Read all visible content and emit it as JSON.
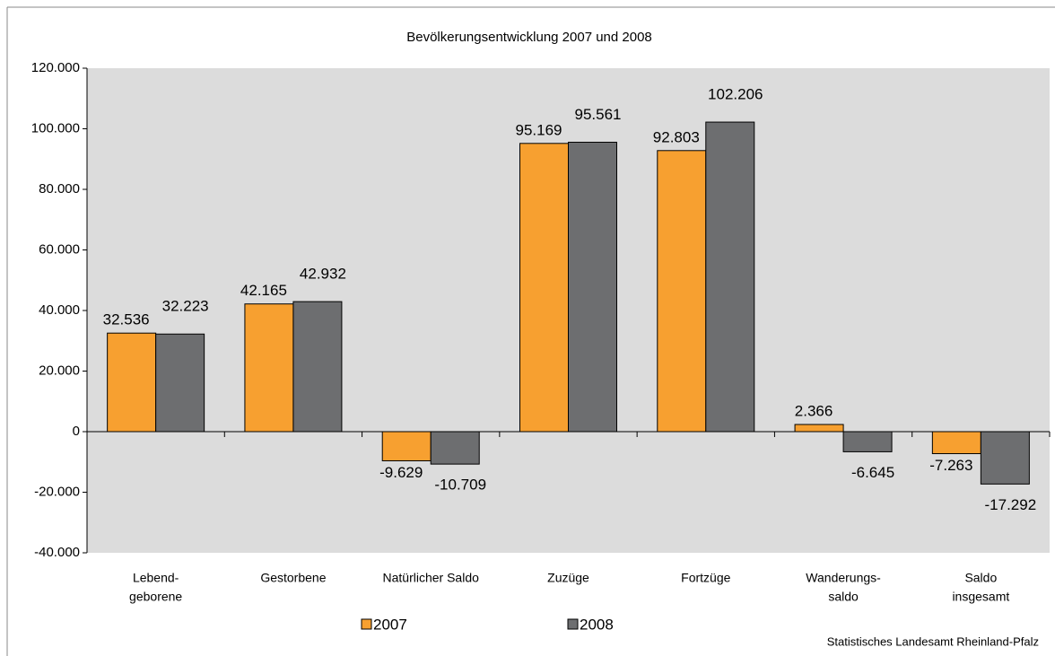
{
  "chart_data": {
    "type": "bar",
    "title": "Bevölkerungsentwicklung 2007 und 2008",
    "categories": [
      [
        "Lebend-",
        "geborene"
      ],
      [
        "Gestorbene"
      ],
      [
        "Natürlicher Saldo"
      ],
      [
        "Zuzüge"
      ],
      [
        "Fortzüge"
      ],
      [
        "Wanderungs-",
        "saldo"
      ],
      [
        "Saldo",
        "insgesamt"
      ]
    ],
    "series": [
      {
        "name": "2007",
        "color": "#f7a030",
        "values": [
          32536,
          42165,
          -9629,
          95169,
          92803,
          2366,
          -7263
        ],
        "value_labels": [
          "32.536",
          "42.165",
          "-9.629",
          "95.169",
          "92.803",
          "2.366",
          "-7.263"
        ]
      },
      {
        "name": "2008",
        "color": "#6d6e70",
        "values": [
          32223,
          42932,
          -10709,
          95561,
          102206,
          -6645,
          -17292
        ],
        "value_labels": [
          "32.223",
          "42.932",
          "-10.709",
          "95.561",
          "102.206",
          "-6.645",
          "-17.292"
        ]
      }
    ],
    "ylim": [
      -40000,
      120000
    ],
    "yticks": [
      {
        "value": -40000,
        "label": "-40.000"
      },
      {
        "value": -20000,
        "label": "-20.000"
      },
      0,
      {
        "value": 20000,
        "label": "20.000"
      },
      {
        "value": 40000,
        "label": "40.000"
      },
      {
        "value": 60000,
        "label": "60.000"
      },
      {
        "value": 80000,
        "label": "80.000"
      },
      {
        "value": 100000,
        "label": "100.000"
      },
      {
        "value": 120000,
        "label": "120.000"
      }
    ],
    "legend": "bottom",
    "source": "Statistisches Landesamt Rheinland-Pfalz"
  }
}
